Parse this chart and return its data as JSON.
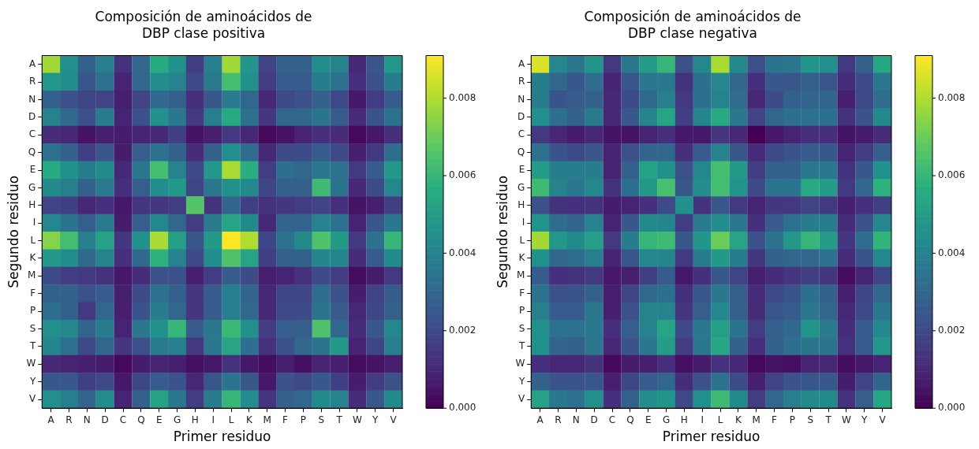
{
  "chart_data": [
    {
      "type": "heatmap",
      "title": "Composición de aminoácidos de\nDBP clase positiva",
      "xlabel": "Primer residuo",
      "ylabel": "Segundo residuo",
      "categories": [
        "A",
        "R",
        "N",
        "D",
        "C",
        "Q",
        "E",
        "G",
        "H",
        "I",
        "L",
        "K",
        "M",
        "F",
        "P",
        "S",
        "T",
        "W",
        "Y",
        "V"
      ],
      "y_categories": [
        "A",
        "R",
        "N",
        "D",
        "C",
        "Q",
        "E",
        "G",
        "H",
        "I",
        "L",
        "K",
        "M",
        "F",
        "P",
        "S",
        "T",
        "W",
        "Y",
        "V"
      ],
      "clim": [
        0,
        0.0091
      ],
      "cticks": [
        {
          "value": 0,
          "label": "0.000"
        },
        {
          "value": 0.002,
          "label": "0.002"
        },
        {
          "value": 0.004,
          "label": "0.004"
        },
        {
          "value": 0.006,
          "label": "0.006"
        },
        {
          "value": 0.008,
          "label": "0.008"
        }
      ],
      "cells": [
        [
          0.0078,
          0.0045,
          0.0028,
          0.0039,
          0.0013,
          0.003,
          0.0055,
          0.0046,
          0.0016,
          0.0039,
          0.0078,
          0.0047,
          0.0018,
          0.0028,
          0.0028,
          0.0044,
          0.004,
          0.001,
          0.0024,
          0.0048
        ],
        [
          0.0048,
          0.0044,
          0.0024,
          0.0034,
          0.0009,
          0.003,
          0.0044,
          0.004,
          0.002,
          0.0037,
          0.0063,
          0.0046,
          0.0016,
          0.0026,
          0.0026,
          0.0038,
          0.0034,
          0.0012,
          0.0022,
          0.0038
        ],
        [
          0.0028,
          0.0022,
          0.0019,
          0.0018,
          0.0008,
          0.0018,
          0.0031,
          0.0028,
          0.0012,
          0.0025,
          0.0037,
          0.003,
          0.001,
          0.002,
          0.0022,
          0.0028,
          0.002,
          0.0006,
          0.0016,
          0.0026
        ],
        [
          0.004,
          0.0031,
          0.0022,
          0.0038,
          0.0009,
          0.0022,
          0.0046,
          0.0036,
          0.0015,
          0.0039,
          0.0055,
          0.0034,
          0.0014,
          0.003,
          0.003,
          0.0035,
          0.0026,
          0.0011,
          0.0023,
          0.0034
        ],
        [
          0.0011,
          0.001,
          0.0005,
          0.0008,
          0.0007,
          0.0009,
          0.001,
          0.0017,
          0.0005,
          0.0008,
          0.0015,
          0.001,
          0.0002,
          0.0005,
          0.0009,
          0.0012,
          0.0011,
          0.0002,
          0.0006,
          0.0012
        ],
        [
          0.0034,
          0.0028,
          0.0017,
          0.0024,
          0.0007,
          0.0027,
          0.0034,
          0.0028,
          0.0011,
          0.0028,
          0.0045,
          0.0032,
          0.001,
          0.002,
          0.0021,
          0.0026,
          0.002,
          0.0008,
          0.0015,
          0.0032
        ],
        [
          0.0055,
          0.0046,
          0.0038,
          0.0043,
          0.001,
          0.0036,
          0.0063,
          0.004,
          0.002,
          0.0048,
          0.0079,
          0.0057,
          0.0016,
          0.0033,
          0.003,
          0.0036,
          0.0034,
          0.0015,
          0.0026,
          0.0048
        ],
        [
          0.0043,
          0.0039,
          0.0028,
          0.0037,
          0.0012,
          0.0027,
          0.0044,
          0.0049,
          0.0019,
          0.0036,
          0.0046,
          0.0043,
          0.0019,
          0.0028,
          0.0028,
          0.0062,
          0.0035,
          0.001,
          0.0021,
          0.0042
        ],
        [
          0.0018,
          0.0017,
          0.001,
          0.0012,
          0.0006,
          0.0014,
          0.0014,
          0.0016,
          0.0066,
          0.0013,
          0.0029,
          0.0017,
          0.0013,
          0.0014,
          0.0016,
          0.0018,
          0.0012,
          0.0005,
          0.0008,
          0.0017
        ],
        [
          0.0042,
          0.0035,
          0.0027,
          0.0037,
          0.0007,
          0.0027,
          0.0042,
          0.003,
          0.0016,
          0.0037,
          0.0053,
          0.0043,
          0.001,
          0.0029,
          0.0029,
          0.004,
          0.0034,
          0.0009,
          0.0024,
          0.0036
        ],
        [
          0.0074,
          0.0063,
          0.0039,
          0.0052,
          0.0014,
          0.0046,
          0.0079,
          0.0051,
          0.0024,
          0.0049,
          0.0091,
          0.008,
          0.0019,
          0.0034,
          0.0043,
          0.0065,
          0.0049,
          0.0015,
          0.0034,
          0.006
        ],
        [
          0.0048,
          0.0044,
          0.0031,
          0.004,
          0.0012,
          0.0031,
          0.0058,
          0.004,
          0.002,
          0.0044,
          0.0065,
          0.0053,
          0.0017,
          0.0028,
          0.0028,
          0.0041,
          0.0041,
          0.0011,
          0.0026,
          0.0043
        ],
        [
          0.0021,
          0.0016,
          0.0015,
          0.0013,
          0.0006,
          0.0011,
          0.0022,
          0.0022,
          0.0008,
          0.0016,
          0.0026,
          0.0021,
          0.0008,
          0.0009,
          0.0013,
          0.002,
          0.0016,
          0.0003,
          0.0007,
          0.0015
        ],
        [
          0.0028,
          0.0028,
          0.0022,
          0.0026,
          0.0008,
          0.002,
          0.0034,
          0.0028,
          0.0014,
          0.0026,
          0.0039,
          0.0029,
          0.001,
          0.0019,
          0.0019,
          0.0032,
          0.0022,
          0.0007,
          0.0018,
          0.0026
        ],
        [
          0.0033,
          0.0028,
          0.0015,
          0.003,
          0.0008,
          0.0023,
          0.0038,
          0.003,
          0.0014,
          0.0026,
          0.0039,
          0.0031,
          0.001,
          0.002,
          0.0021,
          0.0035,
          0.0026,
          0.001,
          0.0019,
          0.0028
        ],
        [
          0.0045,
          0.0042,
          0.0029,
          0.0038,
          0.0009,
          0.0036,
          0.0046,
          0.006,
          0.0026,
          0.0036,
          0.0061,
          0.0046,
          0.0016,
          0.0027,
          0.0027,
          0.0065,
          0.0031,
          0.0011,
          0.0025,
          0.0042
        ],
        [
          0.0041,
          0.0034,
          0.002,
          0.003,
          0.0014,
          0.0022,
          0.0037,
          0.0039,
          0.0015,
          0.0036,
          0.0053,
          0.0033,
          0.0013,
          0.0022,
          0.003,
          0.0035,
          0.0049,
          0.0009,
          0.0019,
          0.0039
        ],
        [
          0.001,
          0.0009,
          0.0008,
          0.0007,
          0.0002,
          0.0007,
          0.0009,
          0.0008,
          0.0004,
          0.0006,
          0.0013,
          0.0006,
          0.0003,
          0.0008,
          0.0004,
          0.0009,
          0.0008,
          0.0003,
          0.0005,
          0.0008
        ],
        [
          0.0025,
          0.0025,
          0.0017,
          0.002,
          0.0006,
          0.0019,
          0.0026,
          0.0023,
          0.001,
          0.0024,
          0.0035,
          0.0025,
          0.0006,
          0.0022,
          0.002,
          0.0025,
          0.0017,
          0.0007,
          0.0016,
          0.0022
        ],
        [
          0.0045,
          0.0039,
          0.0029,
          0.0044,
          0.0009,
          0.0028,
          0.0052,
          0.0036,
          0.0016,
          0.0038,
          0.006,
          0.0044,
          0.0014,
          0.0028,
          0.003,
          0.0043,
          0.004,
          0.0011,
          0.0025,
          0.0043
        ]
      ]
    },
    {
      "type": "heatmap",
      "title": "Composición de aminoácidos de\nDBP clase negativa",
      "xlabel": "Primer residuo",
      "ylabel": "Segundo residuo",
      "categories": [
        "A",
        "R",
        "N",
        "D",
        "C",
        "Q",
        "E",
        "G",
        "H",
        "I",
        "L",
        "K",
        "M",
        "F",
        "P",
        "S",
        "T",
        "W",
        "Y",
        "V"
      ],
      "y_categories": [
        "A",
        "R",
        "N",
        "D",
        "C",
        "Q",
        "E",
        "G",
        "H",
        "I",
        "L",
        "K",
        "M",
        "F",
        "P",
        "S",
        "T",
        "W",
        "Y",
        "V"
      ],
      "clim": [
        0,
        0.0091
      ],
      "cticks": [
        {
          "value": 0,
          "label": "0.000"
        },
        {
          "value": 0.002,
          "label": "0.002"
        },
        {
          "value": 0.004,
          "label": "0.004"
        },
        {
          "value": 0.006,
          "label": "0.006"
        },
        {
          "value": 0.008,
          "label": "0.008"
        }
      ],
      "cells": [
        [
          0.0086,
          0.0042,
          0.0036,
          0.0047,
          0.0015,
          0.0036,
          0.005,
          0.006,
          0.0022,
          0.0042,
          0.0079,
          0.0043,
          0.0022,
          0.0035,
          0.0036,
          0.0047,
          0.0045,
          0.0015,
          0.0028,
          0.0054
        ],
        [
          0.0038,
          0.003,
          0.0025,
          0.0032,
          0.0009,
          0.0024,
          0.0036,
          0.0036,
          0.0013,
          0.0033,
          0.0042,
          0.003,
          0.0012,
          0.0025,
          0.0024,
          0.0028,
          0.0024,
          0.0011,
          0.0021,
          0.0036
        ],
        [
          0.0038,
          0.0023,
          0.0026,
          0.0028,
          0.001,
          0.0021,
          0.0031,
          0.0039,
          0.0015,
          0.0033,
          0.004,
          0.0032,
          0.001,
          0.0021,
          0.0028,
          0.0029,
          0.0029,
          0.0008,
          0.002,
          0.0032
        ],
        [
          0.0045,
          0.0033,
          0.0028,
          0.0037,
          0.001,
          0.0025,
          0.0041,
          0.0053,
          0.0017,
          0.0041,
          0.0055,
          0.0036,
          0.0018,
          0.003,
          0.0033,
          0.0034,
          0.0033,
          0.0013,
          0.0023,
          0.0043
        ],
        [
          0.0015,
          0.001,
          0.0007,
          0.001,
          0.0005,
          0.0005,
          0.0009,
          0.0012,
          0.0006,
          0.0006,
          0.0014,
          0.001,
          0.0,
          0.0006,
          0.0009,
          0.0012,
          0.0012,
          0.0005,
          0.0007,
          0.0011
        ],
        [
          0.0034,
          0.0023,
          0.002,
          0.0024,
          0.0009,
          0.0022,
          0.0029,
          0.003,
          0.0012,
          0.0026,
          0.004,
          0.0025,
          0.0011,
          0.002,
          0.0023,
          0.0026,
          0.0025,
          0.0009,
          0.0016,
          0.0027
        ],
        [
          0.005,
          0.0038,
          0.0038,
          0.0038,
          0.0009,
          0.0028,
          0.0052,
          0.0046,
          0.0022,
          0.0042,
          0.0063,
          0.0049,
          0.0016,
          0.0028,
          0.0028,
          0.0036,
          0.0036,
          0.0013,
          0.0025,
          0.0046
        ],
        [
          0.0062,
          0.004,
          0.0036,
          0.0042,
          0.0013,
          0.0033,
          0.0048,
          0.0064,
          0.0024,
          0.0044,
          0.0063,
          0.0047,
          0.0021,
          0.0035,
          0.0035,
          0.0055,
          0.005,
          0.0015,
          0.003,
          0.0058
        ],
        [
          0.0022,
          0.0013,
          0.0012,
          0.0013,
          0.0007,
          0.0009,
          0.0012,
          0.0021,
          0.0046,
          0.0013,
          0.0025,
          0.0015,
          0.0009,
          0.0014,
          0.0015,
          0.0018,
          0.0015,
          0.0008,
          0.0012,
          0.0017
        ],
        [
          0.0047,
          0.0032,
          0.0029,
          0.004,
          0.0009,
          0.0025,
          0.0043,
          0.0041,
          0.0016,
          0.0037,
          0.0044,
          0.0036,
          0.0012,
          0.0026,
          0.0034,
          0.0038,
          0.0038,
          0.0011,
          0.0023,
          0.0042
        ],
        [
          0.0078,
          0.0048,
          0.0043,
          0.0051,
          0.0015,
          0.0038,
          0.006,
          0.0062,
          0.0024,
          0.0047,
          0.007,
          0.0053,
          0.0022,
          0.0034,
          0.0048,
          0.006,
          0.005,
          0.0014,
          0.0032,
          0.0059
        ],
        [
          0.0046,
          0.003,
          0.0032,
          0.0039,
          0.0009,
          0.0024,
          0.0042,
          0.0041,
          0.0015,
          0.0038,
          0.0049,
          0.0038,
          0.0014,
          0.0028,
          0.003,
          0.003,
          0.0034,
          0.0011,
          0.0023,
          0.0042
        ],
        [
          0.0026,
          0.0012,
          0.0013,
          0.0015,
          0.0006,
          0.0008,
          0.0017,
          0.0026,
          0.0006,
          0.0012,
          0.0025,
          0.0018,
          0.0008,
          0.0011,
          0.0014,
          0.0017,
          0.0014,
          0.0003,
          0.0009,
          0.0019
        ],
        [
          0.0034,
          0.0022,
          0.0023,
          0.0028,
          0.0008,
          0.0018,
          0.003,
          0.0033,
          0.0012,
          0.0025,
          0.0036,
          0.0027,
          0.0011,
          0.002,
          0.0023,
          0.0033,
          0.0028,
          0.0008,
          0.0019,
          0.003
        ],
        [
          0.0039,
          0.0026,
          0.0026,
          0.0036,
          0.0008,
          0.0022,
          0.004,
          0.004,
          0.0014,
          0.0027,
          0.0042,
          0.0028,
          0.0011,
          0.0024,
          0.0026,
          0.0036,
          0.003,
          0.001,
          0.002,
          0.0036
        ],
        [
          0.0045,
          0.0034,
          0.0034,
          0.0036,
          0.0012,
          0.0027,
          0.004,
          0.0053,
          0.002,
          0.0036,
          0.0051,
          0.0035,
          0.0016,
          0.0027,
          0.0031,
          0.0047,
          0.0037,
          0.0011,
          0.0026,
          0.0042
        ],
        [
          0.0046,
          0.0029,
          0.0028,
          0.0036,
          0.001,
          0.0023,
          0.0036,
          0.005,
          0.0016,
          0.0036,
          0.0054,
          0.0028,
          0.0012,
          0.0028,
          0.0033,
          0.0035,
          0.0035,
          0.0013,
          0.0026,
          0.0048
        ],
        [
          0.0012,
          0.001,
          0.001,
          0.0013,
          0.0002,
          0.0007,
          0.0008,
          0.0012,
          0.0004,
          0.0007,
          0.0013,
          0.001,
          0.0002,
          0.0005,
          0.0004,
          0.0009,
          0.001,
          0.0003,
          0.0006,
          0.0009
        ],
        [
          0.0028,
          0.0023,
          0.0023,
          0.0024,
          0.0008,
          0.0019,
          0.0026,
          0.003,
          0.0011,
          0.0022,
          0.0034,
          0.0021,
          0.0008,
          0.0018,
          0.0023,
          0.0024,
          0.0025,
          0.0007,
          0.0018,
          0.0029
        ],
        [
          0.0052,
          0.0036,
          0.0034,
          0.0045,
          0.0012,
          0.0028,
          0.0044,
          0.0047,
          0.002,
          0.0045,
          0.0062,
          0.0043,
          0.0016,
          0.003,
          0.0039,
          0.0043,
          0.0043,
          0.0013,
          0.0027,
          0.0054
        ]
      ]
    }
  ]
}
